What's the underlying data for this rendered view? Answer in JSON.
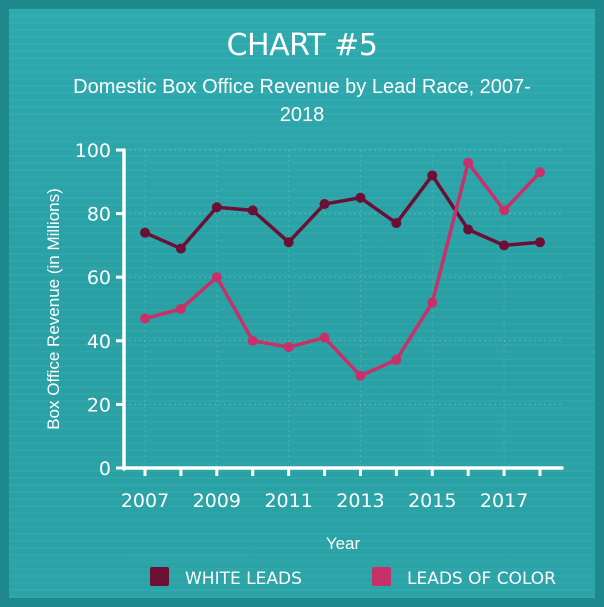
{
  "chart_data": {
    "type": "line",
    "title": "CHART #5",
    "subtitle": "Domestic Box Office Revenue by Lead Race, 2007-2018",
    "xlabel": "Year",
    "ylabel": "Box Office Revenue (in Millions)",
    "ylim": [
      0,
      100
    ],
    "yticks": [
      0,
      20,
      40,
      60,
      80,
      100
    ],
    "xlim": [
      2007,
      2018
    ],
    "xticks": [
      "2007",
      "2009",
      "2011",
      "2013",
      "2015",
      "2017"
    ],
    "grid": true,
    "legend_position": "bottom",
    "x": [
      2007,
      2008,
      2009,
      2010,
      2011,
      2012,
      2013,
      2014,
      2015,
      2016,
      2017,
      2018
    ],
    "series": [
      {
        "name": "WHITE LEADS",
        "color": "#6b0f35",
        "values": [
          74,
          69,
          82,
          81,
          71,
          83,
          85,
          77,
          92,
          75,
          70,
          71
        ]
      },
      {
        "name": "LEADS OF COLOR",
        "color": "#c8306a",
        "values": [
          47,
          50,
          60,
          40,
          38,
          41,
          29,
          34,
          52,
          96,
          81,
          93
        ]
      }
    ]
  },
  "colors": {
    "background": "#2aa4a7",
    "border": "#1e8a8d",
    "text": "#ffffff"
  }
}
